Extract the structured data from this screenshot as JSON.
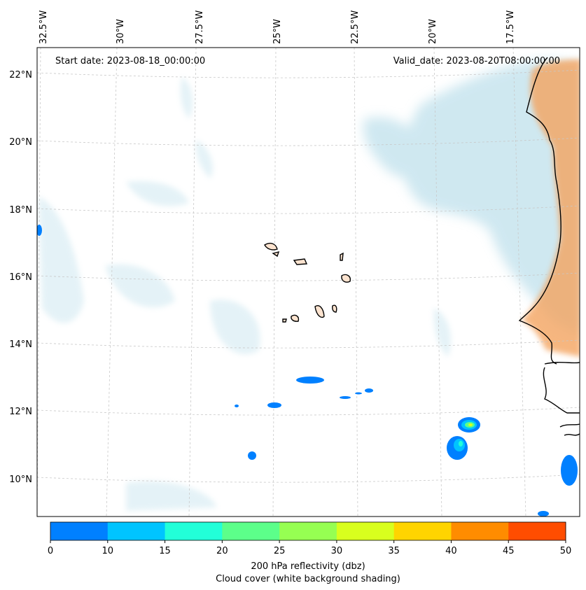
{
  "map": {
    "start_date_label": "Start date: 2023-08-18_00:00:00",
    "valid_date_label": "Valid_date: 2023-08-20T08:00:00.00",
    "lon_labels": [
      "32.5°W",
      "30°W",
      "27.5°W",
      "25°W",
      "22.5°W",
      "20°W",
      "17.5°W"
    ],
    "lat_labels": [
      "22°N",
      "20°N",
      "18°N",
      "16°N",
      "14°N",
      "12°N",
      "10°N"
    ],
    "colors": {
      "cloud": "#a9d6e5",
      "land_warm": "#f4a460",
      "coast": "#000000",
      "grid": "#c8c8c8"
    }
  },
  "colorbar": {
    "ticks": [
      "0",
      "10",
      "15",
      "20",
      "25",
      "30",
      "35",
      "40",
      "45",
      "50"
    ],
    "colors": [
      "#0080ff",
      "#00c4ff",
      "#22ffd8",
      "#5cff8a",
      "#96ff52",
      "#d8ff1e",
      "#ffd400",
      "#ff8c00",
      "#ff4d00"
    ],
    "caption_line1": "200 hPa reflectivity (dbz)",
    "caption_line2": "Cloud cover (white background shading)"
  }
}
